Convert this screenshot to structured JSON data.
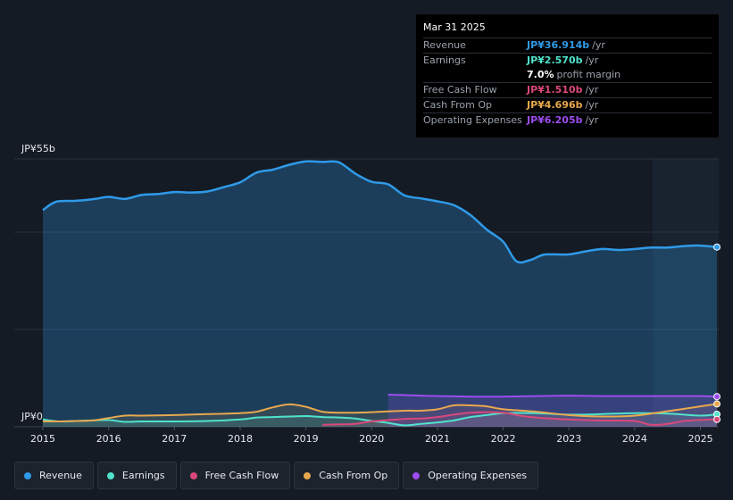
{
  "chart_data": {
    "type": "area",
    "y_label_top": "JP¥55b",
    "y_label_bottom": "JP¥0",
    "ylim": [
      0,
      55
    ],
    "xlim": [
      2015.0,
      2025.25
    ],
    "x_ticks": [
      "2015",
      "2016",
      "2017",
      "2018",
      "2019",
      "2020",
      "2021",
      "2022",
      "2023",
      "2024",
      "2025"
    ],
    "series": [
      {
        "name": "Revenue",
        "color": "#2f9ae8",
        "x": [
          2015.0,
          2015.2,
          2015.5,
          2015.8,
          2016.0,
          2016.25,
          2016.5,
          2016.75,
          2017.0,
          2017.25,
          2017.5,
          2017.75,
          2018.0,
          2018.25,
          2018.5,
          2018.75,
          2019.0,
          2019.25,
          2019.5,
          2019.75,
          2020.0,
          2020.25,
          2020.5,
          2020.75,
          2021.0,
          2021.25,
          2021.5,
          2021.75,
          2022.0,
          2022.2,
          2022.4,
          2022.6,
          2022.75,
          2023.0,
          2023.25,
          2023.5,
          2023.75,
          2024.0,
          2024.25,
          2024.5,
          2024.75,
          2025.0,
          2025.25
        ],
        "values": [
          44.5,
          46.2,
          46.4,
          46.8,
          47.2,
          46.8,
          47.6,
          47.8,
          48.2,
          48.1,
          48.3,
          49.2,
          50.2,
          52.2,
          52.8,
          53.8,
          54.5,
          54.4,
          54.3,
          52.0,
          50.3,
          49.8,
          47.5,
          46.9,
          46.3,
          45.5,
          43.5,
          40.5,
          38.0,
          34.0,
          34.2,
          35.3,
          35.4,
          35.4,
          36.0,
          36.5,
          36.3,
          36.5,
          36.8,
          36.8,
          37.1,
          37.2,
          36.9
        ]
      },
      {
        "name": "Earnings",
        "color": "#4fe3cc",
        "x": [
          2015.0,
          2015.25,
          2015.5,
          2015.75,
          2016.0,
          2016.25,
          2016.5,
          2017.0,
          2017.5,
          2018.0,
          2018.25,
          2018.5,
          2018.75,
          2019.0,
          2019.25,
          2019.5,
          2019.75,
          2020.0,
          2020.25,
          2020.5,
          2020.75,
          2021.0,
          2021.25,
          2021.5,
          2021.75,
          2022.0,
          2022.5,
          2023.0,
          2023.5,
          2024.0,
          2024.5,
          2025.0,
          2025.25
        ],
        "values": [
          1.5,
          1.1,
          1.2,
          1.3,
          1.4,
          1.0,
          1.1,
          1.1,
          1.2,
          1.5,
          1.9,
          2.0,
          2.1,
          2.2,
          2.0,
          1.9,
          1.7,
          1.2,
          0.8,
          0.3,
          0.6,
          0.9,
          1.3,
          2.0,
          2.4,
          2.8,
          2.8,
          2.5,
          2.6,
          2.8,
          2.7,
          2.3,
          2.57
        ]
      },
      {
        "name": "Free Cash Flow",
        "color": "#d9487a",
        "x": [
          2019.25,
          2019.5,
          2019.75,
          2020.0,
          2020.5,
          2020.75,
          2021.0,
          2021.5,
          2022.0,
          2022.25,
          2022.5,
          2023.0,
          2023.5,
          2024.0,
          2024.25,
          2024.5,
          2024.75,
          2025.0,
          2025.25
        ],
        "values": [
          0.4,
          0.5,
          0.6,
          1.1,
          1.6,
          1.7,
          2.0,
          2.9,
          2.9,
          2.3,
          1.9,
          1.5,
          1.3,
          1.2,
          0.4,
          0.6,
          1.2,
          1.4,
          1.51
        ]
      },
      {
        "name": "Cash From Op",
        "color": "#e8a84e",
        "x": [
          2015.0,
          2015.25,
          2015.5,
          2015.75,
          2016.0,
          2016.25,
          2016.5,
          2017.0,
          2017.5,
          2018.0,
          2018.25,
          2018.5,
          2018.75,
          2019.0,
          2019.25,
          2019.5,
          2019.75,
          2020.0,
          2020.5,
          2020.75,
          2021.0,
          2021.25,
          2021.5,
          2021.75,
          2022.0,
          2022.5,
          2023.0,
          2023.5,
          2024.0,
          2024.5,
          2025.0,
          2025.25
        ],
        "values": [
          1.1,
          1.1,
          1.2,
          1.3,
          1.8,
          2.3,
          2.3,
          2.4,
          2.6,
          2.8,
          3.1,
          4.0,
          4.6,
          4.1,
          3.1,
          2.9,
          2.9,
          3.0,
          3.3,
          3.3,
          3.6,
          4.4,
          4.4,
          4.2,
          3.6,
          3.1,
          2.4,
          2.1,
          2.3,
          3.2,
          4.2,
          4.696
        ]
      },
      {
        "name": "Operating Expenses",
        "color": "#9c4ded",
        "x": [
          2020.25,
          2020.5,
          2021.0,
          2021.5,
          2022.0,
          2022.5,
          2023.0,
          2023.5,
          2024.0,
          2024.5,
          2025.0,
          2025.25
        ],
        "values": [
          6.6,
          6.5,
          6.3,
          6.2,
          6.2,
          6.3,
          6.4,
          6.3,
          6.3,
          6.3,
          6.3,
          6.205
        ]
      }
    ]
  },
  "tooltip": {
    "date": "Mar 31 2025",
    "rows": [
      {
        "label": "Revenue",
        "value": "JP¥36.914b",
        "unit": "/yr",
        "color": "#2f9ae8"
      },
      {
        "label": "Earnings",
        "value": "JP¥2.570b",
        "unit": "/yr",
        "color": "#4fe3cc"
      },
      {
        "label": "",
        "value": "7.0%",
        "unit": "profit margin",
        "color": "#ffffff"
      },
      {
        "label": "Free Cash Flow",
        "value": "JP¥1.510b",
        "unit": "/yr",
        "color": "#d9487a"
      },
      {
        "label": "Cash From Op",
        "value": "JP¥4.696b",
        "unit": "/yr",
        "color": "#e8a84e"
      },
      {
        "label": "Operating Expenses",
        "value": "JP¥6.205b",
        "unit": "/yr",
        "color": "#9c4ded"
      }
    ]
  },
  "legend": [
    {
      "label": "Revenue",
      "color": "#2f9ae8"
    },
    {
      "label": "Earnings",
      "color": "#4fe3cc"
    },
    {
      "label": "Free Cash Flow",
      "color": "#d9487a"
    },
    {
      "label": "Cash From Op",
      "color": "#e8a84e"
    },
    {
      "label": "Operating Expenses",
      "color": "#9c4ded"
    }
  ]
}
